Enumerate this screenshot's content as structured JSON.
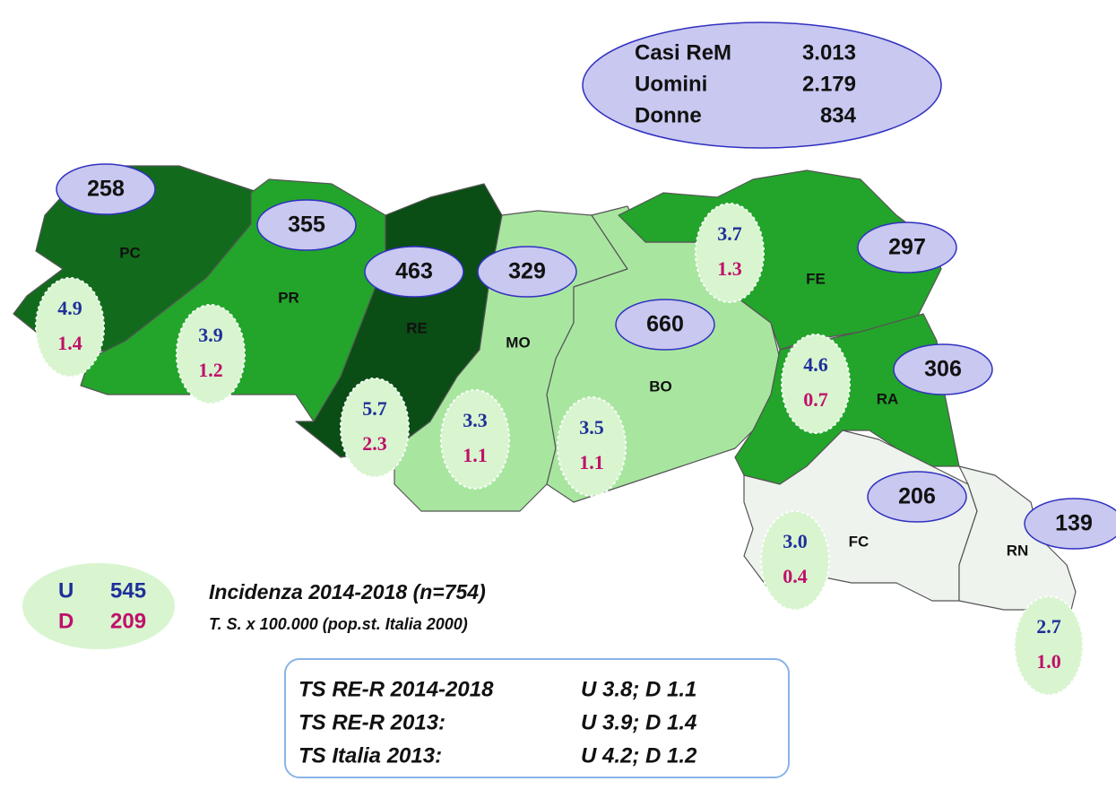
{
  "summary": {
    "rows": [
      {
        "label": "Casi ReM",
        "value": "3.013"
      },
      {
        "label": "Uomini",
        "value": "2.179"
      },
      {
        "label": "Donne",
        "value": "834"
      }
    ]
  },
  "provinces": [
    {
      "code": "PC",
      "cases": "258",
      "rate_u": "4.9",
      "rate_d": "1.4"
    },
    {
      "code": "PR",
      "cases": "355",
      "rate_u": "3.9",
      "rate_d": "1.2"
    },
    {
      "code": "RE",
      "cases": "463",
      "rate_u": "5.7",
      "rate_d": "2.3"
    },
    {
      "code": "MO",
      "cases": "329",
      "rate_u": "3.3",
      "rate_d": "1.1"
    },
    {
      "code": "BO",
      "cases": "660",
      "rate_u": "3.5",
      "rate_d": "1.1"
    },
    {
      "code": "FE",
      "cases": "297",
      "rate_u": "3.7",
      "rate_d": "1.3"
    },
    {
      "code": "RA",
      "cases": "306",
      "rate_u": "4.6",
      "rate_d": "0.7"
    },
    {
      "code": "FC",
      "cases": "206",
      "rate_u": "3.0",
      "rate_d": "0.4"
    },
    {
      "code": "RN",
      "cases": "139",
      "rate_u": "2.7",
      "rate_d": "1.0"
    }
  ],
  "legend": {
    "u_label": "U",
    "u_value": "545",
    "d_label": "D",
    "d_value": "209"
  },
  "caption": {
    "title": "Incidenza 2014-2018 (n=754)",
    "subtitle": "T. S. x 100.000 (pop.st. Italia 2000)"
  },
  "rates_box": {
    "rows": [
      [
        "TS RE-R 2014-2018",
        "U 3.8; D 1.1"
      ],
      [
        "TS RE-R 2013:",
        "U 3.9; D 1.4"
      ],
      [
        "TS Italia 2013:",
        "U 4.2; D 1.2"
      ]
    ]
  }
}
